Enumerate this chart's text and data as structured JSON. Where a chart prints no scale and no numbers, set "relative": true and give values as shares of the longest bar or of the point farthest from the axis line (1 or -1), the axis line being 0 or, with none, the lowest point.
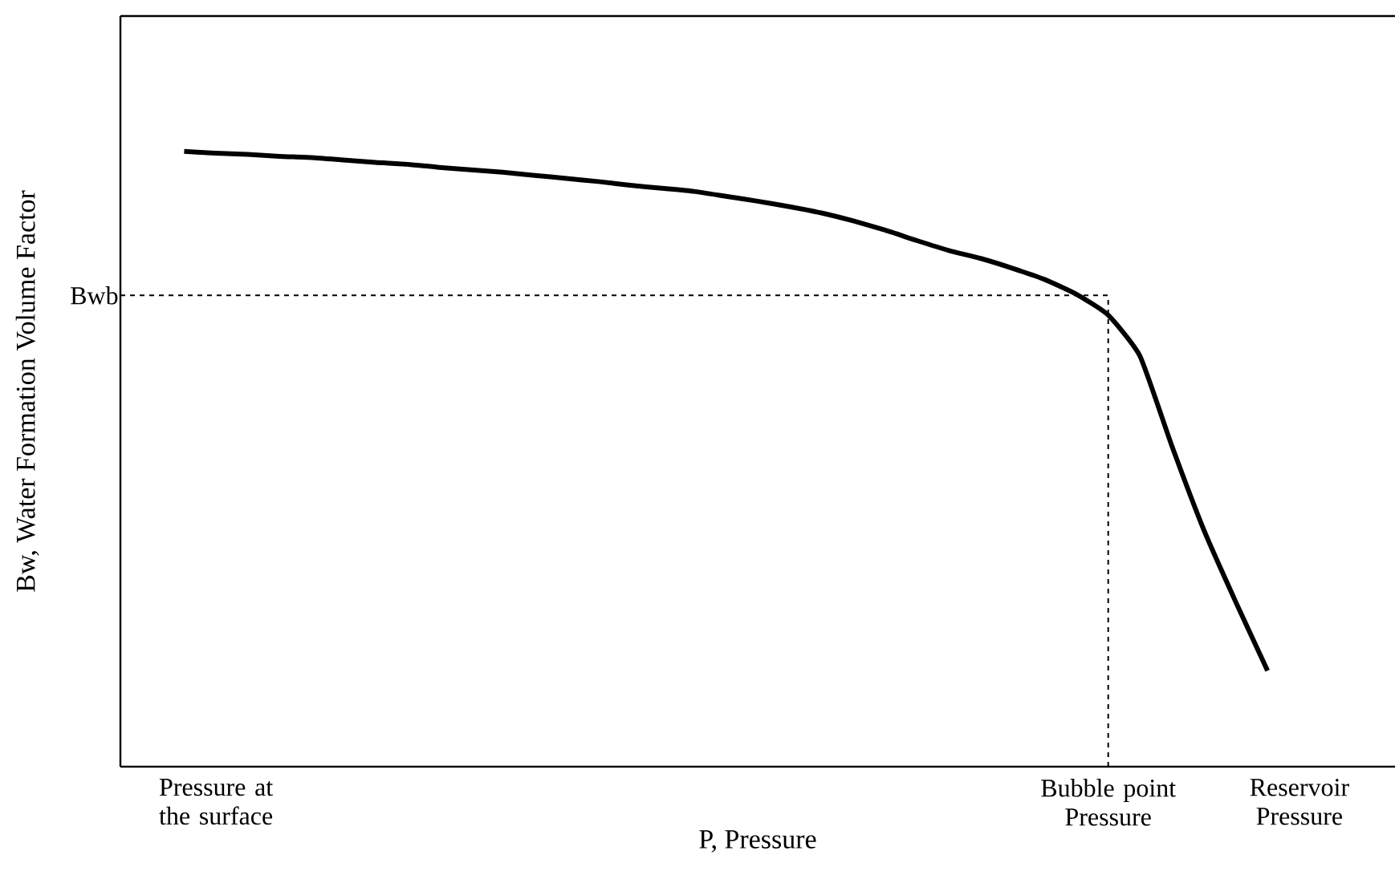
{
  "chart_data": {
    "type": "line",
    "relative": true,
    "xlabel": "P, Pressure",
    "ylabel": "Bw, Water Formation Volume Factor",
    "color": "#000000",
    "categories": [
      null,
      null,
      null,
      "Pressure at the surface",
      null,
      null,
      null,
      null,
      null,
      null,
      null,
      null,
      null,
      null,
      null,
      null,
      null,
      null,
      null,
      null,
      null,
      null,
      null,
      null,
      null,
      null,
      null,
      null,
      null,
      null,
      null,
      "Bubble point Pressure",
      null,
      null,
      null,
      null,
      null,
      "Reservoir Pressure",
      null,
      null,
      null
    ],
    "values": [
      null,
      null,
      1.0,
      0.997,
      0.995,
      0.992,
      0.99,
      0.986,
      0.982,
      0.979,
      0.974,
      0.97,
      0.966,
      0.961,
      0.956,
      0.951,
      0.945,
      0.94,
      0.935,
      0.927,
      0.919,
      0.91,
      0.9,
      0.887,
      0.872,
      0.855,
      0.839,
      0.826,
      0.81,
      0.792,
      0.768,
      0.734,
      0.667,
      0.521,
      0.385,
      0.268,
      0.156,
      null,
      null,
      null,
      null
    ],
    "ref_lines": [
      {
        "axis": "y",
        "value": 0.766,
        "label": "Bwb",
        "line_style": "dashed"
      },
      {
        "axis": "x",
        "value": "Bubble point Pressure",
        "line_style": "dashed"
      }
    ],
    "grid": false,
    "marker": "none",
    "line_style": "solid"
  }
}
